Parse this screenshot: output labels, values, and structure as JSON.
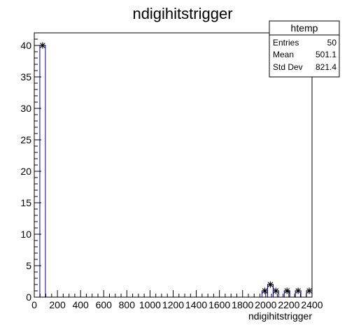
{
  "chart_data": {
    "type": "histogram",
    "title": "ndigihitstrigger",
    "xlabel": "ndigihitstrigger",
    "ylabel": "",
    "xlim": [
      0,
      2400
    ],
    "ylim": [
      0,
      42
    ],
    "xticks": [
      "0",
      "200",
      "400",
      "600",
      "800",
      "1000",
      "1200",
      "1400",
      "1600",
      "1800",
      "2000",
      "2200",
      "2400"
    ],
    "yticks": [
      "0",
      "5",
      "10",
      "15",
      "20",
      "25",
      "30",
      "35",
      "40"
    ],
    "bins": {
      "start": 0,
      "width": 48,
      "counts": [
        0,
        40,
        0,
        0,
        0,
        0,
        0,
        0,
        0,
        0,
        0,
        0,
        0,
        0,
        0,
        0,
        0,
        0,
        0,
        0,
        0,
        0,
        0,
        0,
        0,
        0,
        0,
        0,
        0,
        0,
        0,
        0,
        0,
        0,
        0,
        0,
        0,
        0,
        0,
        0,
        0,
        1,
        2,
        1,
        0,
        1,
        0,
        1,
        0,
        1
      ]
    },
    "stats_box": {
      "title": "htemp",
      "rows": [
        {
          "label": "Entries",
          "value": "50"
        },
        {
          "label": "Mean",
          "value": "501.1"
        },
        {
          "label": "Std Dev",
          "value": "821.4"
        }
      ]
    },
    "colors": {
      "line": "#0000aa",
      "marker": "#000000",
      "frame": "#000000"
    }
  }
}
